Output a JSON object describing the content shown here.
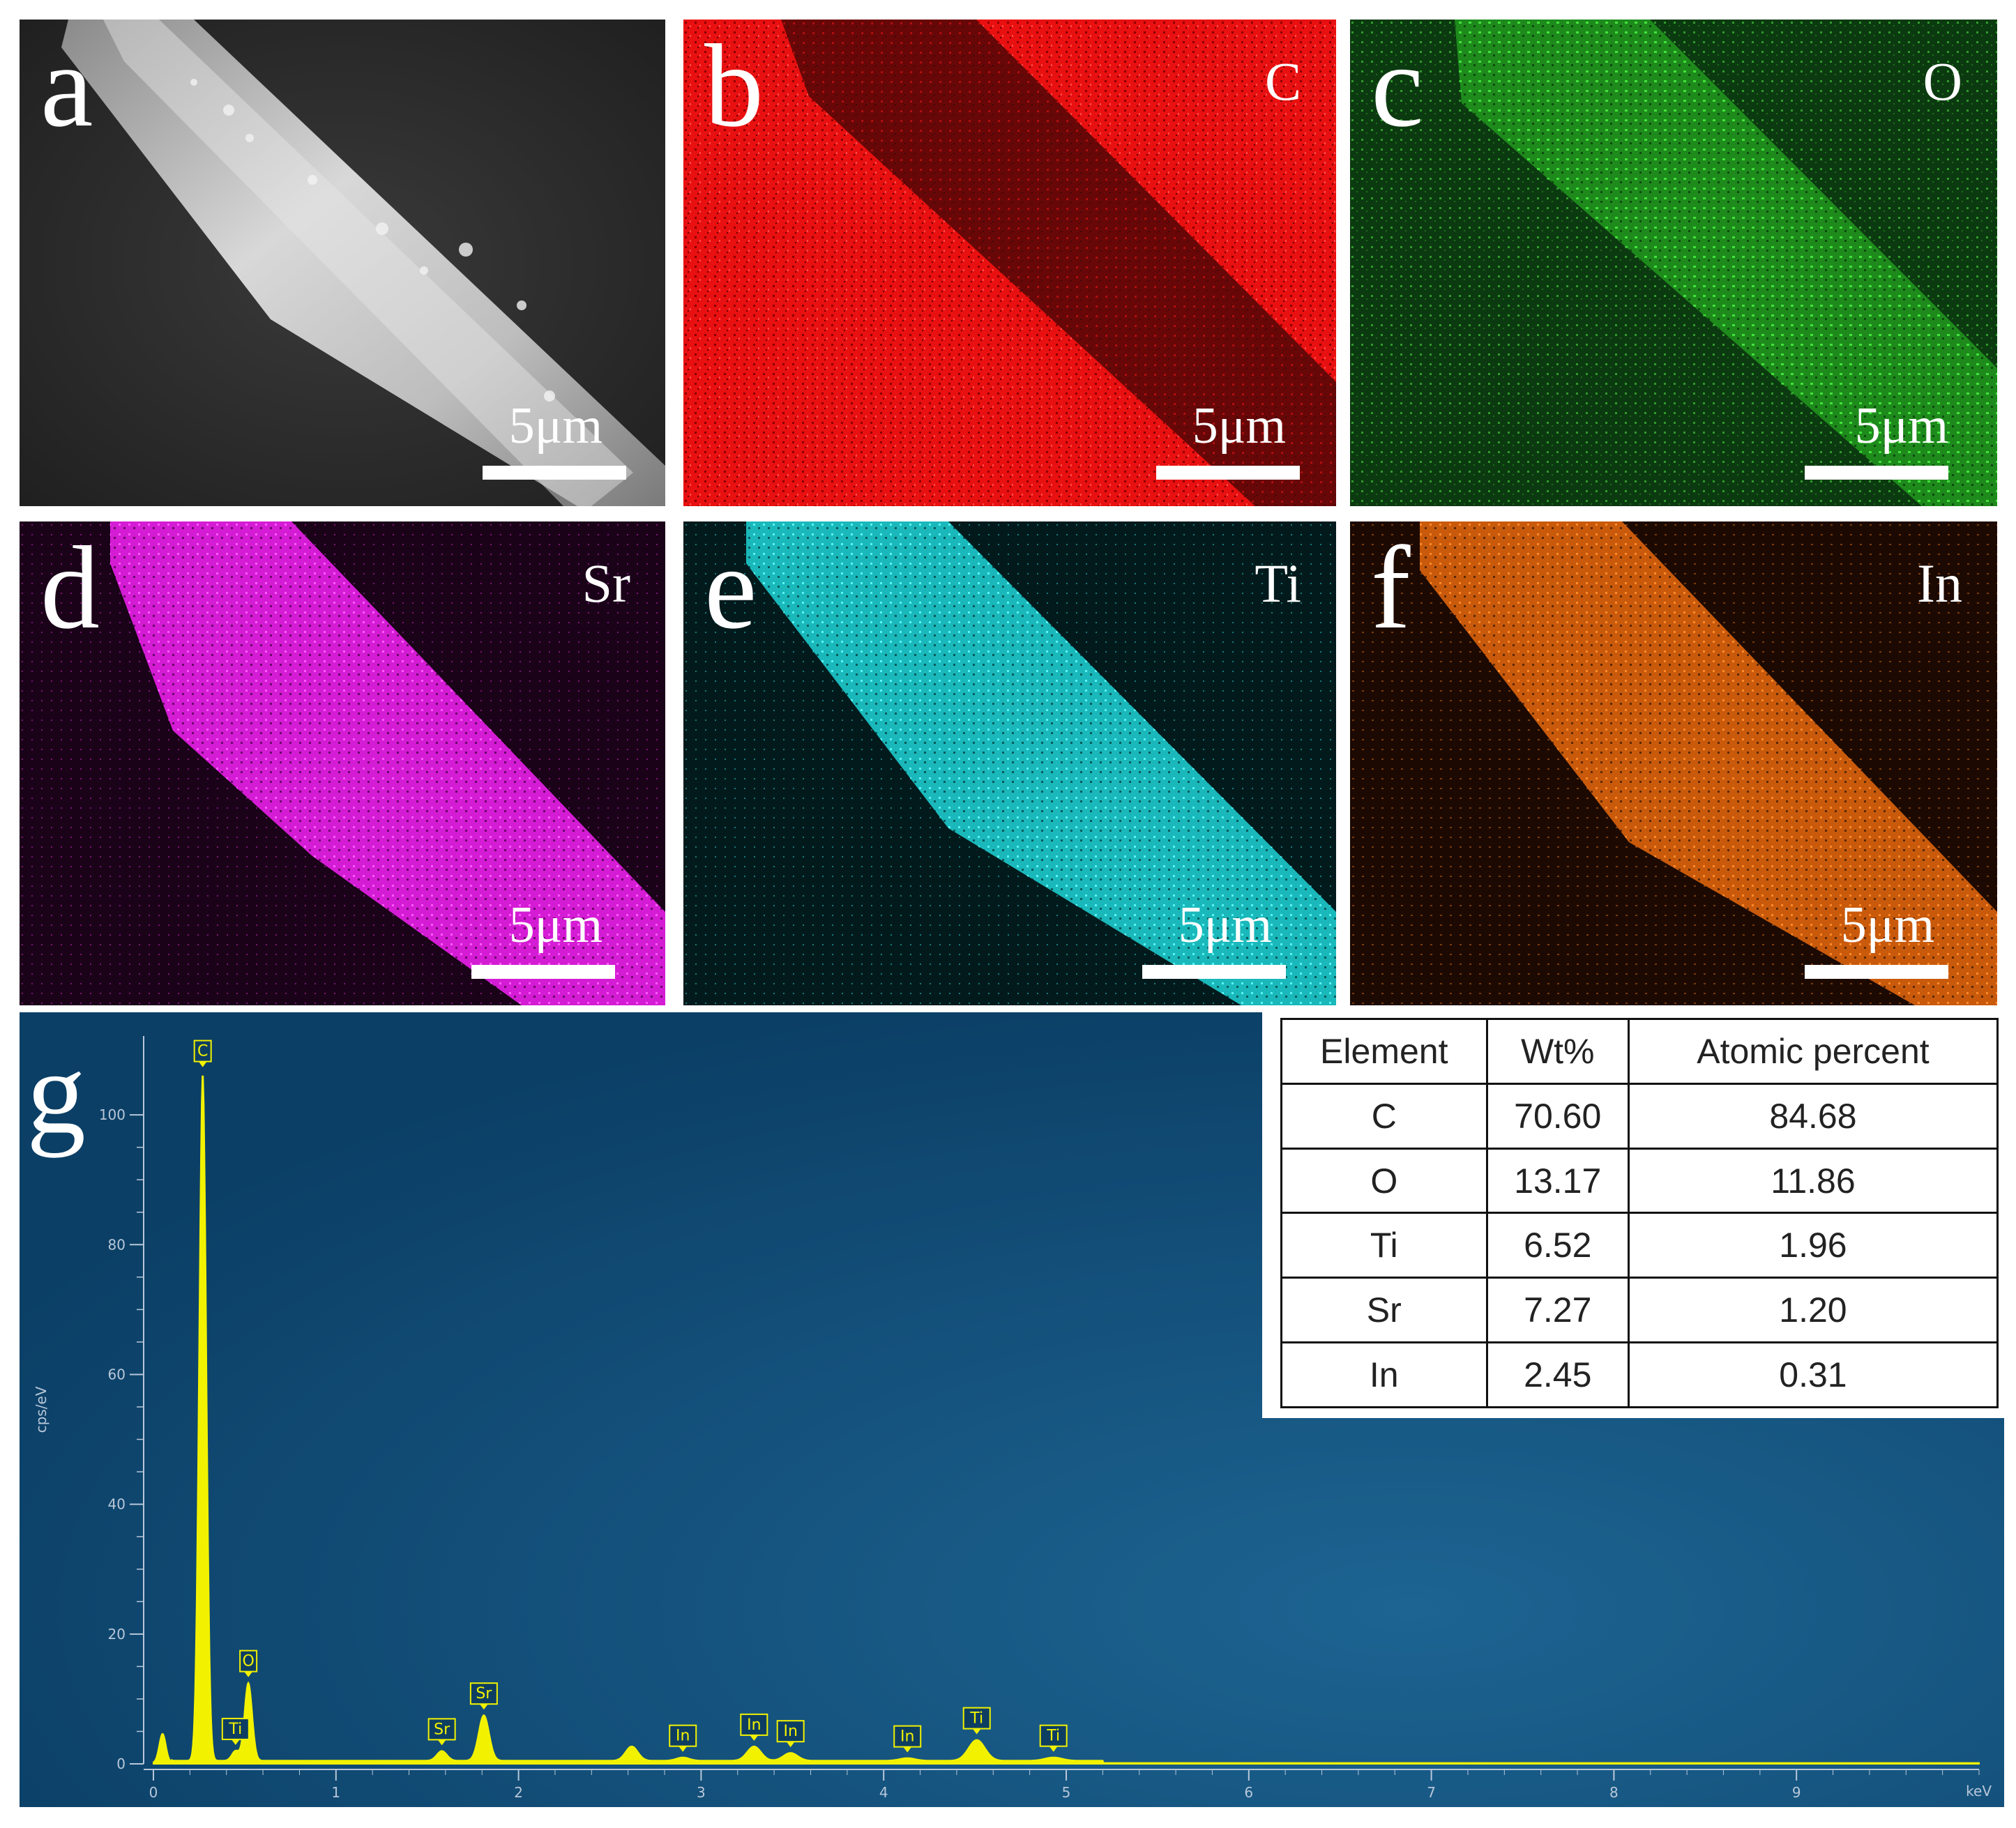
{
  "panels": [
    {
      "id": "a",
      "letter": "a",
      "element": "",
      "scale": "5μm",
      "kind": "sem"
    },
    {
      "id": "b",
      "letter": "b",
      "element": "C",
      "scale": "5μm",
      "kind": "map",
      "color": "#ff1a1a",
      "band": "dark"
    },
    {
      "id": "c",
      "letter": "c",
      "element": "O",
      "scale": "5μm",
      "kind": "map",
      "color": "#22c21e",
      "band": "bright"
    },
    {
      "id": "d",
      "letter": "d",
      "element": "Sr",
      "scale": "5μm",
      "kind": "map",
      "color": "#e020e0",
      "band": "bright"
    },
    {
      "id": "e",
      "letter": "e",
      "element": "Ti",
      "scale": "5μm",
      "kind": "map",
      "color": "#22d8d8",
      "band": "bright"
    },
    {
      "id": "f",
      "letter": "f",
      "element": "In",
      "scale": "5μm",
      "kind": "map",
      "color": "#f07010",
      "band": "bright"
    }
  ],
  "spectrum": {
    "letter": "g",
    "background": "#0e4670",
    "trace_color": "#f2f200",
    "ylabel": "cps/eV",
    "xunit": "keV",
    "y_ticks": [
      "0",
      "20",
      "40",
      "60",
      "80",
      "100"
    ],
    "x_ticks": [
      "0",
      "1",
      "2",
      "3",
      "4",
      "5",
      "6",
      "7",
      "8",
      "9"
    ]
  },
  "chart_data": {
    "type": "line",
    "xlabel": "keV",
    "ylabel": "cps/eV",
    "xlim": [
      0,
      10
    ],
    "ylim": [
      0,
      110
    ],
    "peaks": [
      {
        "x": 0.05,
        "y": 4.5,
        "label": ""
      },
      {
        "x": 0.27,
        "y": 106,
        "label": "C"
      },
      {
        "x": 0.45,
        "y": 1.5,
        "label": "Ti"
      },
      {
        "x": 0.52,
        "y": 12,
        "label": "O"
      },
      {
        "x": 1.58,
        "y": 1.5,
        "label": "Sr"
      },
      {
        "x": 1.81,
        "y": 7,
        "label": "Sr"
      },
      {
        "x": 2.62,
        "y": 2.2,
        "label": ""
      },
      {
        "x": 2.9,
        "y": 0.5,
        "label": "In"
      },
      {
        "x": 3.29,
        "y": 2.2,
        "label": "In"
      },
      {
        "x": 3.49,
        "y": 1.2,
        "label": "In"
      },
      {
        "x": 4.13,
        "y": 0.4,
        "label": "In"
      },
      {
        "x": 4.51,
        "y": 3.2,
        "label": "Ti"
      },
      {
        "x": 4.93,
        "y": 0.5,
        "label": "Ti"
      }
    ]
  },
  "table": {
    "headers": [
      "Element",
      "Wt%",
      "Atomic percent"
    ],
    "rows": [
      [
        "C",
        "70.60",
        "84.68"
      ],
      [
        "O",
        "13.17",
        "11.86"
      ],
      [
        "Ti",
        "6.52",
        "1.96"
      ],
      [
        "Sr",
        "7.27",
        "1.20"
      ],
      [
        "In",
        "2.45",
        "0.31"
      ]
    ]
  }
}
